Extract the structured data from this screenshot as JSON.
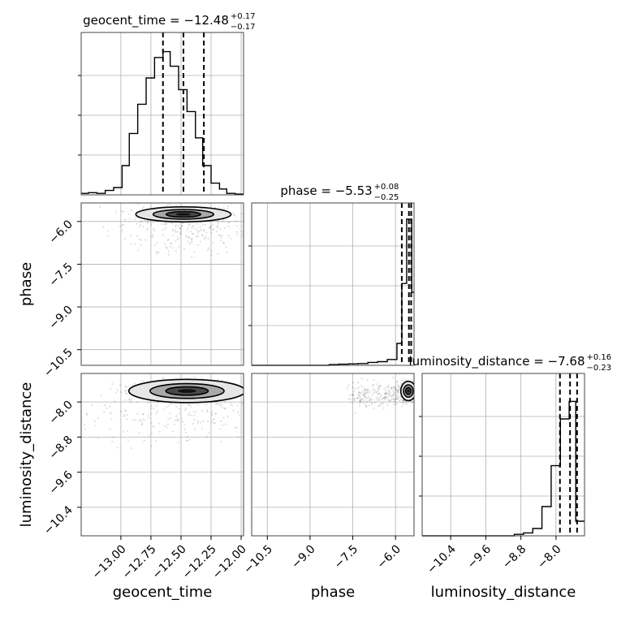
{
  "chart_data": {
    "type": "corner",
    "parameters": [
      "geocent_time",
      "phase",
      "luminosity_distance"
    ],
    "axis_labels": [
      "geocent_time",
      "phase",
      "luminosity_distance"
    ],
    "titles": [
      {
        "label": "geocent_time = −12.48",
        "plus": "+0.17",
        "minus": "−0.17"
      },
      {
        "label": "phase = −5.53",
        "plus": "+0.08",
        "minus": "−0.25"
      },
      {
        "label": "luminosity_distance = −7.68",
        "plus": "+0.16",
        "minus": "−0.23"
      }
    ],
    "ranges": {
      "geocent_time": [
        -13.33,
        -11.98
      ],
      "phase": [
        -11.05,
        -5.35
      ],
      "luminosity_distance": [
        -11.05,
        -7.35
      ]
    },
    "ticks": {
      "geocent_time": [
        {
          "v": -13.0,
          "label": "−13.00"
        },
        {
          "v": -12.75,
          "label": "−12.75"
        },
        {
          "v": -12.5,
          "label": "−12.50"
        },
        {
          "v": -12.25,
          "label": "−12.25"
        },
        {
          "v": -12.0,
          "label": "−12.00"
        }
      ],
      "phase": [
        {
          "v": -10.5,
          "label": "−10.5"
        },
        {
          "v": -9.0,
          "label": "−9.0"
        },
        {
          "v": -7.5,
          "label": "−7.5"
        },
        {
          "v": -6.0,
          "label": "−6.0"
        }
      ],
      "luminosity_distance": [
        {
          "v": -10.4,
          "label": "−10.4"
        },
        {
          "v": -9.6,
          "label": "−9.6"
        },
        {
          "v": -8.8,
          "label": "−8.8"
        },
        {
          "v": -8.0,
          "label": "−8.0"
        }
      ]
    },
    "marginals": {
      "geocent_time": {
        "edges": [
          -13.33,
          -13.27,
          -13.2,
          -13.13,
          -13.06,
          -12.99,
          -12.93,
          -12.86,
          -12.79,
          -12.72,
          -12.65,
          -12.59,
          -12.52,
          -12.45,
          -12.38,
          -12.32,
          -12.25,
          -12.18,
          -12.12,
          -12.05,
          -11.98
        ],
        "counts": [
          0.01,
          0.015,
          0.01,
          0.03,
          0.05,
          0.2,
          0.42,
          0.62,
          0.8,
          0.94,
          0.98,
          0.88,
          0.72,
          0.57,
          0.39,
          0.2,
          0.08,
          0.04,
          0.01,
          0.005
        ],
        "quantiles": [
          -12.65,
          -12.48,
          -12.31
        ]
      },
      "phase": {
        "edges": [
          -11.05,
          -10.71,
          -10.37,
          -10.03,
          -9.69,
          -9.35,
          -9.01,
          -8.67,
          -8.33,
          -7.99,
          -7.65,
          -7.31,
          -6.97,
          -6.63,
          -6.29,
          -5.95,
          -5.78,
          -5.61,
          -5.52,
          -5.43,
          -5.35
        ],
        "counts": [
          0,
          0,
          0,
          0,
          0,
          0,
          0,
          0,
          0.005,
          0.008,
          0.01,
          0.012,
          0.02,
          0.025,
          0.04,
          0.15,
          0.56,
          1.0,
          1.0,
          0.5
        ],
        "quantiles": [
          -5.78,
          -5.53,
          -5.45
        ]
      },
      "luminosity_distance": {
        "edges": [
          -11.05,
          -10.84,
          -10.63,
          -10.42,
          -10.21,
          -10.0,
          -9.79,
          -9.58,
          -9.37,
          -9.16,
          -8.95,
          -8.74,
          -8.53,
          -8.32,
          -8.11,
          -7.9,
          -7.7,
          -7.55,
          -7.35
        ],
        "counts": [
          0,
          0,
          0,
          0,
          0,
          0,
          0,
          0,
          0,
          0,
          0.01,
          0.02,
          0.05,
          0.2,
          0.48,
          0.8,
          0.92,
          0.1
        ],
        "quantiles": [
          -7.91,
          -7.68,
          -7.52
        ]
      }
    },
    "pairs": [
      {
        "x": "geocent_time",
        "y": "phase",
        "center": [
          -12.48,
          -5.75
        ],
        "spread": [
          0.18,
          0.12
        ],
        "tail": [
          -12.45,
          -7.0
        ]
      },
      {
        "x": "geocent_time",
        "y": "luminosity_distance",
        "center": [
          -12.45,
          -7.75
        ],
        "spread": [
          0.22,
          0.12
        ],
        "tail": [
          -12.6,
          -8.8
        ]
      },
      {
        "x": "phase",
        "y": "luminosity_distance",
        "center": [
          -5.55,
          -7.75
        ],
        "spread": [
          0.12,
          0.1
        ],
        "tail": [
          -7.5,
          -7.9
        ]
      }
    ]
  }
}
